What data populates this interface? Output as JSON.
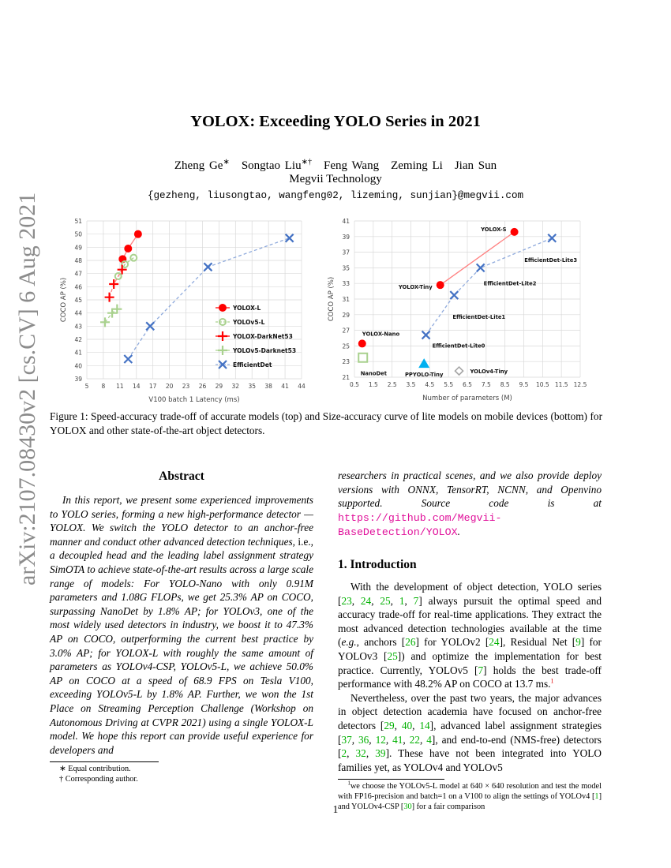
{
  "arxiv_stamp": "arXiv:2107.08430v2  [cs.CV]  6 Aug 2021",
  "title": "YOLOX: Exceeding YOLO Series in 2021",
  "authors": [
    {
      "name": "Zheng Ge",
      "mark": "∗"
    },
    {
      "name": "Songtao Liu",
      "mark": "∗†"
    },
    {
      "name": "Feng Wang",
      "mark": ""
    },
    {
      "name": "Zeming Li",
      "mark": ""
    },
    {
      "name": "Jian Sun",
      "mark": ""
    }
  ],
  "affiliation": "Megvii Technology",
  "emails": "{gezheng, liusongtao, wangfeng02, lizeming, sunjian}@megvii.com",
  "chart_data": [
    {
      "type": "scatter",
      "title": "",
      "xlabel": "V100 batch 1 Latency (ms)",
      "ylabel": "COCO AP (%)",
      "xlim": [
        5,
        44
      ],
      "ylim": [
        39,
        51
      ],
      "xticks": [
        "5",
        "8",
        "11",
        "14",
        "17",
        "20",
        "23",
        "26",
        "29",
        "32",
        "35",
        "38",
        "41",
        "44"
      ],
      "yticks": [
        "39",
        "40",
        "41",
        "42",
        "43",
        "44",
        "45",
        "46",
        "47",
        "48",
        "49",
        "50",
        "51"
      ],
      "grid": true,
      "legend": "right",
      "series": [
        {
          "name": "YOLOX-L",
          "marker": "dot",
          "color": "#ff0000",
          "line": "solid",
          "points": [
            [
              11.5,
              48.1
            ],
            [
              12.5,
              48.9
            ],
            [
              14.3,
              50.0
            ]
          ]
        },
        {
          "name": "YOLOv5-L",
          "marker": "ring",
          "color": "#a9d18e",
          "line": "dashed",
          "points": [
            [
              10.7,
              46.8
            ],
            [
              11.9,
              47.7
            ],
            [
              13.5,
              48.2
            ]
          ]
        },
        {
          "name": "YOLOX-DarkNet53",
          "marker": "plus",
          "color": "#ff0000",
          "line": "dashed",
          "points": [
            [
              9.1,
              45.2
            ],
            [
              9.9,
              46.2
            ],
            [
              11.4,
              47.3
            ]
          ]
        },
        {
          "name": "YOLOv5-Darknet53",
          "marker": "plus",
          "color": "#a9d18e",
          "line": "dashed",
          "points": [
            [
              8.3,
              43.3
            ],
            [
              9.6,
              44.0
            ],
            [
              10.5,
              44.3
            ]
          ]
        },
        {
          "name": "EfficientDet",
          "marker": "x",
          "color": "#4472c4",
          "line": "dashed",
          "points": [
            [
              12.5,
              40.5
            ],
            [
              16.5,
              43.0
            ],
            [
              27.0,
              47.5
            ],
            [
              41.8,
              49.7
            ]
          ]
        }
      ]
    },
    {
      "type": "scatter",
      "title": "",
      "xlabel": "Number of parameters (M)",
      "ylabel": "COCO AP (%)",
      "xlim": [
        0.5,
        12.5
      ],
      "ylim": [
        21,
        41
      ],
      "xticks": [
        "0.5",
        "1.5",
        "2.5",
        "3.5",
        "4.5",
        "5.5",
        "6.5",
        "7.5",
        "8.5",
        "9.5",
        "10.5",
        "11.5",
        "12.5"
      ],
      "yticks": [
        "21",
        "23",
        "25",
        "27",
        "29",
        "31",
        "33",
        "35",
        "37",
        "39",
        "41"
      ],
      "grid": true,
      "series": [
        {
          "name": "YOLOX",
          "marker": "dot",
          "color": "#ff0000",
          "line": "solid",
          "connect_from": 1,
          "points": [
            [
              0.91,
              25.3,
              "YOLOX-Nano"
            ],
            [
              5.06,
              32.8,
              "YOLOX-Tiny"
            ],
            [
              9.0,
              39.6,
              "YOLOX-S"
            ]
          ]
        },
        {
          "name": "EfficientDet-Lite",
          "marker": "x",
          "color": "#4472c4",
          "line": "dashed",
          "points": [
            [
              4.3,
              26.4,
              "EfficientDet-Lite0"
            ],
            [
              5.8,
              31.5,
              "EfficientDet-Lite1"
            ],
            [
              7.2,
              35.0,
              "EfficientDet-Lite2"
            ],
            [
              11.0,
              38.8,
              "EfficientDet-Lite3"
            ]
          ]
        },
        {
          "name": "NanoDet",
          "marker": "square",
          "color": "#a9d18e",
          "line": "none",
          "points": [
            [
              0.95,
              23.5,
              "NanoDet"
            ]
          ]
        },
        {
          "name": "PPYOLO-Tiny",
          "marker": "triangle",
          "color": "#00b0f0",
          "line": "none",
          "points": [
            [
              4.2,
              22.7,
              "PPYOLO-Tiny"
            ]
          ]
        },
        {
          "name": "YOLOv4-Tiny",
          "marker": "diamond",
          "color": "#a5a5a5",
          "line": "none",
          "points": [
            [
              6.06,
              21.8,
              "YOLOv4-Tiny"
            ]
          ]
        }
      ]
    }
  ],
  "caption": "Figure 1: Speed-accuracy trade-off of accurate models (top) and Size-accuracy curve of lite models on mobile devices (bottom) for YOLOX and other state-of-the-art object detectors.",
  "abstract_heading": "Abstract",
  "abstract_left": [
    [
      "t",
      "In this report, we present some experienced improvements to YOLO series, forming a new high-performance detector — YOLOX. We switch the YOLO detector to an anchor-free manner and conduct other advanced detection techniques, "
    ],
    [
      "n",
      "i.e."
    ],
    [
      "t",
      ", a decoupled head and the leading label assignment strategy SimOTA to achieve state-of-the-art results across a large scale range of models: For YOLO-Nano with only 0.91M parameters and 1.08G FLOPs, we get 25.3% AP on COCO, surpassing NanoDet by 1.8% AP; for YOLOv3, one of the most widely used detectors in industry, we boost it to 47.3% AP on COCO, outperforming the current best practice by 3.0% AP; for YOLOX-L with roughly the same amount of parameters as YOLOv4-CSP, YOLOv5-L, we achieve 50.0% AP on COCO at a speed of 68.9 FPS on Tesla V100, exceeding YOLOv5-L by 1.8% AP. Further, we won the 1st Place on Streaming Perception Challenge (Workshop on Autonomous Driving at CVPR 2021) using a single YOLOX-L model. We hope this report can provide useful experience for developers and"
    ]
  ],
  "abstract_right": [
    [
      "t",
      "researchers in practical scenes, and we also provide deploy versions with ONNX, TensorRT, NCNN, and Openvino supported. Source code is at "
    ],
    [
      "u",
      "https://github.com/Megvii-BaseDetection/YOLOX"
    ],
    [
      "t",
      "."
    ]
  ],
  "intro_heading": "1. Introduction",
  "intro_p1": [
    [
      "t",
      "With the development of object detection, YOLO series ["
    ],
    [
      "c",
      "23"
    ],
    [
      "t",
      ", "
    ],
    [
      "c",
      "24"
    ],
    [
      "t",
      ", "
    ],
    [
      "c",
      "25"
    ],
    [
      "t",
      ", "
    ],
    [
      "c",
      "1"
    ],
    [
      "t",
      ", "
    ],
    [
      "c",
      "7"
    ],
    [
      "t",
      "] always pursuit the optimal speed and accuracy trade-off for real-time applications. They extract the most advanced detection technologies available at the time ("
    ],
    [
      "i",
      "e.g."
    ],
    [
      "t",
      ", anchors ["
    ],
    [
      "c",
      "26"
    ],
    [
      "t",
      "] for YOLOv2 ["
    ],
    [
      "c",
      "24"
    ],
    [
      "t",
      "], Residual Net ["
    ],
    [
      "c",
      "9"
    ],
    [
      "t",
      "] for YOLOv3 ["
    ],
    [
      "c",
      "25"
    ],
    [
      "t",
      "]) and optimize the implementation for best practice. Currently, YOLOv5 ["
    ],
    [
      "c",
      "7"
    ],
    [
      "t",
      "] holds the best trade-off performance with 48.2% AP on COCO at 13.7 ms."
    ],
    [
      "s",
      "1"
    ]
  ],
  "intro_p2": [
    [
      "t",
      "Nevertheless, over the past two years, the major advances in object detection academia have focused on anchor-free detectors ["
    ],
    [
      "c",
      "29"
    ],
    [
      "t",
      ", "
    ],
    [
      "c",
      "40"
    ],
    [
      "t",
      ", "
    ],
    [
      "c",
      "14"
    ],
    [
      "t",
      "], advanced label assignment strategies ["
    ],
    [
      "c",
      "37"
    ],
    [
      "t",
      ", "
    ],
    [
      "c",
      "36"
    ],
    [
      "t",
      ", "
    ],
    [
      "c",
      "12"
    ],
    [
      "t",
      ", "
    ],
    [
      "c",
      "41"
    ],
    [
      "t",
      ", "
    ],
    [
      "c",
      "22"
    ],
    [
      "t",
      ", "
    ],
    [
      "c",
      "4"
    ],
    [
      "t",
      "], and end-to-end (NMS-free) detectors ["
    ],
    [
      "c",
      "2"
    ],
    [
      "t",
      ", "
    ],
    [
      "c",
      "32"
    ],
    [
      "t",
      ", "
    ],
    [
      "c",
      "39"
    ],
    [
      "t",
      "]. These have not been integrated into YOLO families yet, as YOLOv4 and YOLOv5"
    ]
  ],
  "footnote_right": [
    [
      "t",
      "1",
      "sup"
    ],
    [
      "t",
      "we choose the YOLOv5-L model at 640 × 640 resolution and test the model with FP16-precision and batch=1 on a V100 to align the settings of YOLOv4 ["
    ],
    [
      "c",
      "1"
    ],
    [
      "t",
      "] and YOLOv4-CSP ["
    ],
    [
      "c",
      "30"
    ],
    [
      "t",
      "] for a fair comparison"
    ]
  ],
  "footnotes_left": [
    "∗ Equal contribution.",
    "† Corresponding author."
  ],
  "page_number": "1"
}
